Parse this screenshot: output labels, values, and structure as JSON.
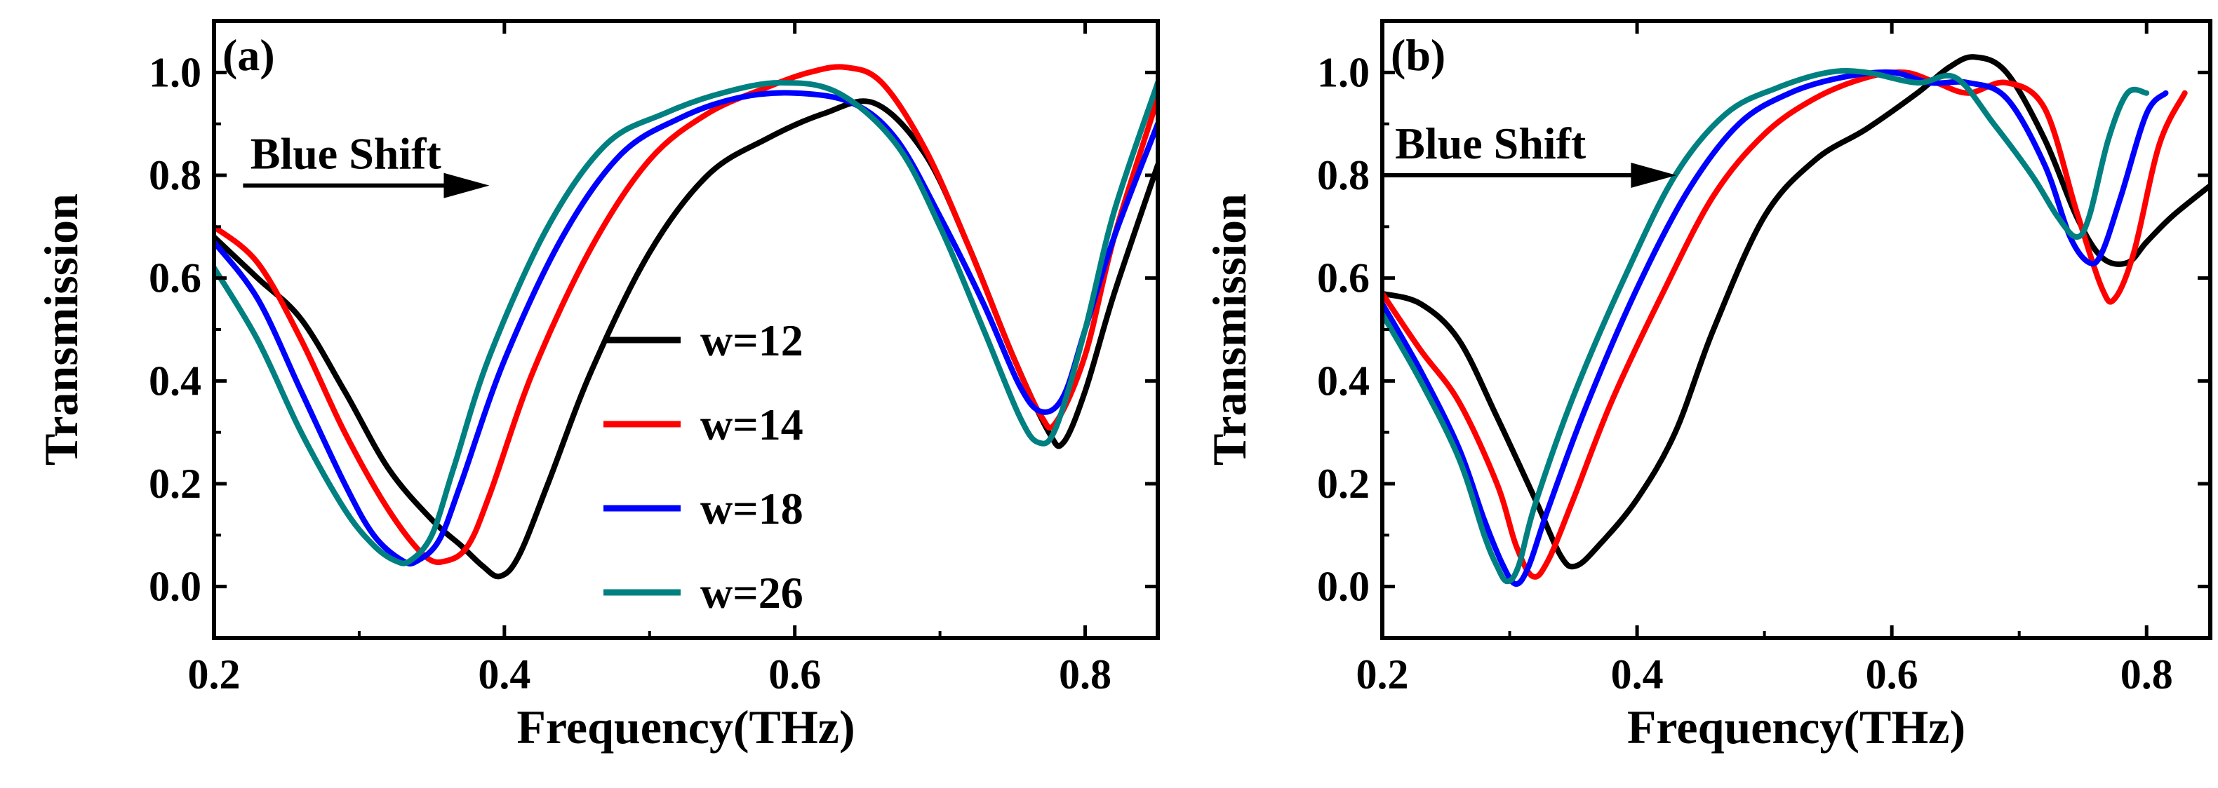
{
  "chart_data": [
    {
      "type": "line",
      "panel_label": "(a)",
      "xlabel": "Frequency(THz)",
      "ylabel": "Transmission",
      "xlim": [
        0.2,
        0.85
      ],
      "ylim": [
        -0.1,
        1.1
      ],
      "xticks": [
        {
          "value": 0.2,
          "label": "0.2"
        },
        {
          "value": 0.4,
          "label": "0.4"
        },
        {
          "value": 0.6,
          "label": "0.6"
        },
        {
          "value": 0.8,
          "label": "0.8"
        }
      ],
      "yticks": [
        {
          "value": 0.0,
          "label": "0.0"
        },
        {
          "value": 0.2,
          "label": "0.2"
        },
        {
          "value": 0.4,
          "label": "0.4"
        },
        {
          "value": 0.6,
          "label": "0.6"
        },
        {
          "value": 0.8,
          "label": "0.8"
        },
        {
          "value": 1.0,
          "label": "1.0"
        }
      ],
      "annotation": {
        "text": "Blue Shift",
        "arrow_from": [
          0.22,
          0.78
        ],
        "arrow_to": [
          0.38,
          0.78
        ],
        "text_at": [
          0.225,
          0.84
        ]
      },
      "legend": {
        "placement": "center-right"
      },
      "series": [
        {
          "name": "w=12",
          "color": "#000000",
          "x": [
            0.2,
            0.23,
            0.26,
            0.29,
            0.32,
            0.35,
            0.37,
            0.385,
            0.397,
            0.41,
            0.43,
            0.46,
            0.5,
            0.54,
            0.58,
            0.62,
            0.655,
            0.69,
            0.72,
            0.75,
            0.775,
            0.785,
            0.8,
            0.82,
            0.85
          ],
          "y": [
            0.68,
            0.6,
            0.52,
            0.38,
            0.23,
            0.13,
            0.08,
            0.04,
            0.02,
            0.06,
            0.2,
            0.42,
            0.65,
            0.8,
            0.87,
            0.92,
            0.94,
            0.84,
            0.66,
            0.45,
            0.3,
            0.28,
            0.38,
            0.57,
            0.82
          ]
        },
        {
          "name": "w=14",
          "color": "#ff0000",
          "x": [
            0.2,
            0.23,
            0.26,
            0.29,
            0.32,
            0.345,
            0.36,
            0.375,
            0.39,
            0.42,
            0.46,
            0.5,
            0.54,
            0.58,
            0.61,
            0.635,
            0.66,
            0.69,
            0.72,
            0.75,
            0.77,
            0.78,
            0.8,
            0.82,
            0.85
          ],
          "y": [
            0.7,
            0.63,
            0.48,
            0.3,
            0.15,
            0.06,
            0.05,
            0.08,
            0.18,
            0.42,
            0.66,
            0.83,
            0.92,
            0.97,
            1.0,
            1.01,
            0.98,
            0.85,
            0.66,
            0.45,
            0.33,
            0.32,
            0.45,
            0.68,
            0.95
          ]
        },
        {
          "name": "w=18",
          "color": "#0000ff",
          "x": [
            0.2,
            0.23,
            0.26,
            0.29,
            0.31,
            0.33,
            0.34,
            0.355,
            0.37,
            0.4,
            0.44,
            0.48,
            0.52,
            0.56,
            0.6,
            0.64,
            0.67,
            0.7,
            0.73,
            0.755,
            0.77,
            0.785,
            0.8,
            0.82,
            0.85
          ],
          "y": [
            0.67,
            0.56,
            0.38,
            0.2,
            0.1,
            0.05,
            0.05,
            0.09,
            0.2,
            0.44,
            0.68,
            0.84,
            0.91,
            0.95,
            0.96,
            0.94,
            0.87,
            0.72,
            0.55,
            0.39,
            0.34,
            0.37,
            0.5,
            0.68,
            0.9
          ]
        },
        {
          "name": "w=26",
          "color": "#008080",
          "x": [
            0.2,
            0.23,
            0.26,
            0.29,
            0.31,
            0.325,
            0.335,
            0.35,
            0.365,
            0.39,
            0.43,
            0.47,
            0.51,
            0.55,
            0.59,
            0.63,
            0.67,
            0.7,
            0.73,
            0.755,
            0.768,
            0.78,
            0.8,
            0.82,
            0.85
          ],
          "y": [
            0.62,
            0.48,
            0.3,
            0.15,
            0.08,
            0.05,
            0.05,
            0.1,
            0.23,
            0.45,
            0.7,
            0.86,
            0.92,
            0.96,
            0.98,
            0.96,
            0.86,
            0.7,
            0.5,
            0.33,
            0.28,
            0.31,
            0.5,
            0.73,
            0.98
          ]
        }
      ],
      "legend_entries": [
        "w=12",
        "w=14",
        "w=18",
        "w=26"
      ]
    },
    {
      "type": "line",
      "panel_label": "(b)",
      "xlabel": "Frequency(THz)",
      "ylabel": "Transmission",
      "xlim": [
        0.2,
        0.85
      ],
      "ylim": [
        -0.1,
        1.1
      ],
      "xticks": [
        {
          "value": 0.2,
          "label": "0.2"
        },
        {
          "value": 0.4,
          "label": "0.4"
        },
        {
          "value": 0.6,
          "label": "0.6"
        },
        {
          "value": 0.8,
          "label": "0.8"
        }
      ],
      "yticks": [
        {
          "value": 0.0,
          "label": "0.0"
        },
        {
          "value": 0.2,
          "label": "0.2"
        },
        {
          "value": 0.4,
          "label": "0.4"
        },
        {
          "value": 0.6,
          "label": "0.6"
        },
        {
          "value": 0.8,
          "label": "0.8"
        },
        {
          "value": 1.0,
          "label": "1.0"
        }
      ],
      "annotation": {
        "text": "Blue Shift",
        "arrow_from": [
          0.2,
          0.8
        ],
        "arrow_to": [
          0.42,
          0.8
        ],
        "text_at": [
          0.21,
          0.86
        ]
      },
      "series": [
        {
          "name": "w=12",
          "color": "#000000",
          "x": [
            0.2,
            0.23,
            0.26,
            0.29,
            0.32,
            0.34,
            0.352,
            0.37,
            0.4,
            0.43,
            0.46,
            0.5,
            0.54,
            0.58,
            0.62,
            0.645,
            0.665,
            0.69,
            0.72,
            0.745,
            0.765,
            0.785,
            0.8,
            0.82,
            0.85
          ],
          "y": [
            0.57,
            0.55,
            0.48,
            0.33,
            0.17,
            0.06,
            0.04,
            0.08,
            0.17,
            0.3,
            0.5,
            0.72,
            0.83,
            0.89,
            0.96,
            1.01,
            1.03,
            1.0,
            0.87,
            0.72,
            0.64,
            0.63,
            0.67,
            0.72,
            0.78
          ]
        },
        {
          "name": "w=14",
          "color": "#ff0000",
          "x": [
            0.2,
            0.23,
            0.26,
            0.29,
            0.305,
            0.318,
            0.33,
            0.35,
            0.38,
            0.42,
            0.46,
            0.5,
            0.54,
            0.58,
            0.61,
            0.635,
            0.66,
            0.69,
            0.72,
            0.745,
            0.765,
            0.775,
            0.79,
            0.81,
            0.83
          ],
          "y": [
            0.57,
            0.46,
            0.36,
            0.2,
            0.08,
            0.02,
            0.05,
            0.17,
            0.36,
            0.57,
            0.76,
            0.88,
            0.95,
            0.99,
            1.0,
            0.98,
            0.96,
            0.98,
            0.93,
            0.73,
            0.58,
            0.56,
            0.65,
            0.86,
            0.96
          ]
        },
        {
          "name": "w=18",
          "color": "#0000ff",
          "x": [
            0.2,
            0.23,
            0.26,
            0.28,
            0.295,
            0.305,
            0.315,
            0.33,
            0.36,
            0.4,
            0.44,
            0.48,
            0.52,
            0.56,
            0.6,
            0.63,
            0.66,
            0.69,
            0.72,
            0.74,
            0.755,
            0.765,
            0.78,
            0.8,
            0.815
          ],
          "y": [
            0.55,
            0.42,
            0.27,
            0.13,
            0.04,
            0.005,
            0.04,
            0.15,
            0.35,
            0.58,
            0.77,
            0.9,
            0.96,
            0.99,
            1.0,
            0.98,
            0.98,
            0.95,
            0.82,
            0.68,
            0.63,
            0.65,
            0.76,
            0.92,
            0.96
          ]
        },
        {
          "name": "w=26",
          "color": "#008080",
          "x": [
            0.2,
            0.23,
            0.26,
            0.28,
            0.29,
            0.298,
            0.307,
            0.32,
            0.35,
            0.39,
            0.43,
            0.47,
            0.51,
            0.55,
            0.58,
            0.62,
            0.65,
            0.68,
            0.71,
            0.73,
            0.745,
            0.755,
            0.77,
            0.785,
            0.8
          ],
          "y": [
            0.53,
            0.4,
            0.25,
            0.1,
            0.04,
            0.01,
            0.04,
            0.16,
            0.37,
            0.6,
            0.8,
            0.92,
            0.97,
            1.0,
            1.0,
            0.98,
            0.99,
            0.9,
            0.8,
            0.72,
            0.68,
            0.72,
            0.87,
            0.96,
            0.96
          ]
        }
      ]
    }
  ]
}
